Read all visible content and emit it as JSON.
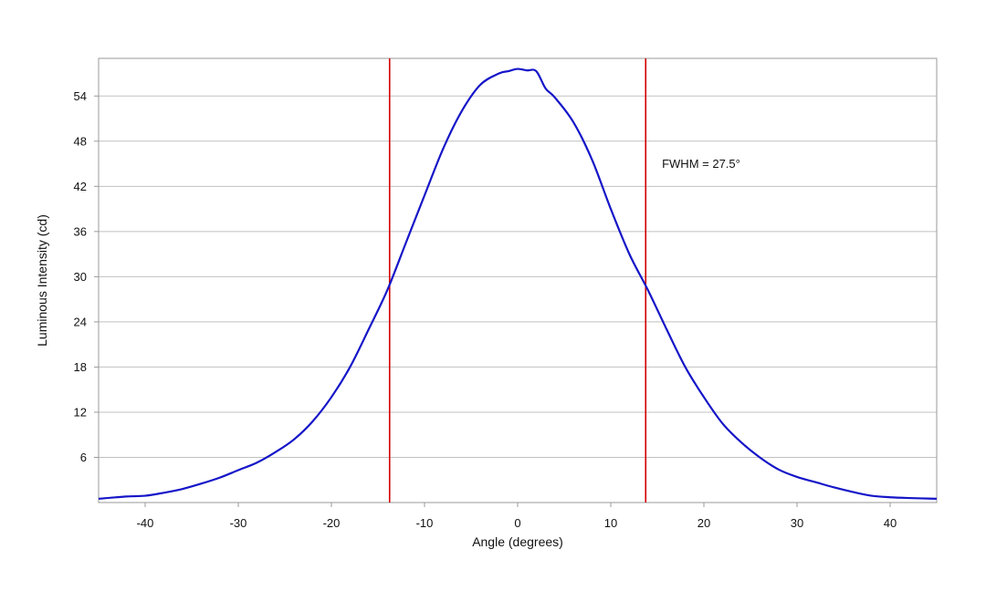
{
  "chart_data": {
    "type": "line",
    "title": "",
    "xlabel": "Angle (degrees)",
    "ylabel": "Luminous Intensity (cd)",
    "xlim": [
      -45,
      45
    ],
    "ylim": [
      0,
      59
    ],
    "xticks": [
      -40,
      -30,
      -20,
      -10,
      0,
      10,
      20,
      30,
      40
    ],
    "yticks": [
      6,
      12,
      18,
      24,
      30,
      36,
      42,
      48,
      54
    ],
    "grid": "horizontal",
    "legend": "none",
    "series": [
      {
        "color": "#1515c8",
        "x": [
          -45,
          -42,
          -40,
          -38,
          -36,
          -34,
          -32,
          -30,
          -28,
          -26,
          -24,
          -22,
          -20,
          -18,
          -16,
          -14,
          -12,
          -10,
          -8,
          -6,
          -4,
          -2,
          -1,
          0,
          1,
          2,
          3,
          4,
          6,
          8,
          10,
          12,
          14,
          16,
          18,
          20,
          22,
          24,
          26,
          28,
          30,
          32,
          34,
          36,
          38,
          40,
          42,
          45
        ],
        "y": [
          0.5,
          0.8,
          0.9,
          1.3,
          1.8,
          2.5,
          3.3,
          4.3,
          5.3,
          6.7,
          8.4,
          10.8,
          14.0,
          18.0,
          23.0,
          28.2,
          34.5,
          40.8,
          47.0,
          52.0,
          55.5,
          57.0,
          57.3,
          57.6,
          57.4,
          57.3,
          55.0,
          53.8,
          50.5,
          45.5,
          39.0,
          33.0,
          28.2,
          23.0,
          18.0,
          14.0,
          10.5,
          8.0,
          6.0,
          4.4,
          3.4,
          2.7,
          2.0,
          1.4,
          0.9,
          0.7,
          0.6,
          0.5
        ]
      }
    ],
    "vlines": [
      {
        "x": -13.75,
        "color": "#d40000"
      },
      {
        "x": 13.75,
        "color": "#d40000"
      }
    ],
    "annotation": {
      "text": "FWHM = 27.5°",
      "x": 15.5,
      "y": 45
    }
  }
}
